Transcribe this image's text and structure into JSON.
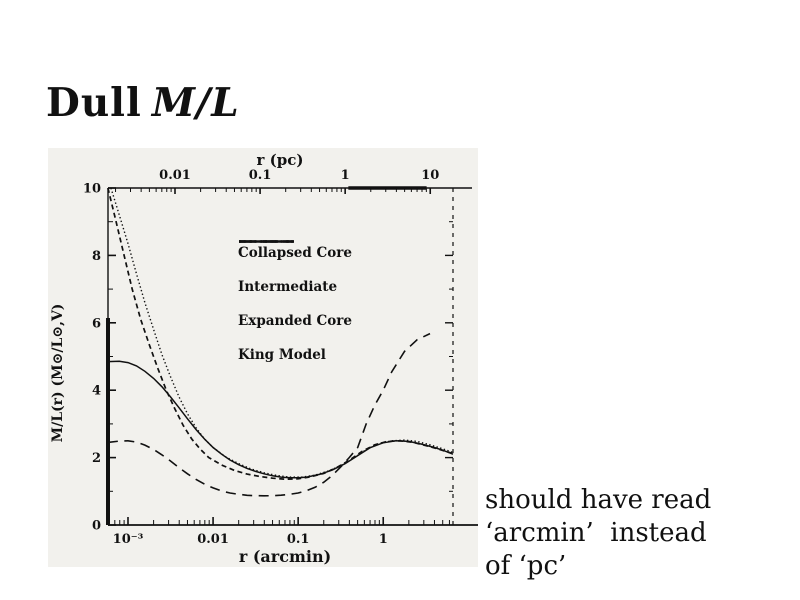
{
  "slide": {
    "title_plain": "Dull",
    "title_math": "M/L",
    "caption_lines": [
      "should have read",
      "‘arcmin’  instead",
      "of ‘pc’"
    ]
  },
  "colors": {
    "ink": "#111111",
    "figure_bg": "#f2f1ed",
    "page_bg": "#ffffff"
  },
  "chart_data": {
    "type": "line",
    "title": "",
    "xlabel_bottom": "r (arcmin)",
    "xlabel_top": "r (pc)",
    "ylabel": "M/L(r) (M⊙/L⊙,V)",
    "x_scale": "log",
    "xlim_log": [
      -3.235,
      0.82
    ],
    "ylim": [
      0,
      10
    ],
    "grid": false,
    "legend_position": "upper middle",
    "pc_offset_log": 0.4475,
    "x_ticks_bottom": [
      {
        "log": -3,
        "label": "10⁻³"
      },
      {
        "log": -2,
        "label": "0.01"
      },
      {
        "log": -1,
        "label": "0.1"
      },
      {
        "log": 0,
        "label": "1"
      }
    ],
    "x_ticks_top": [
      {
        "log_pc": -2,
        "label": "0.01"
      },
      {
        "log_pc": -1,
        "label": "0.1"
      },
      {
        "log_pc": 0,
        "label": "1"
      },
      {
        "log_pc": 1,
        "label": "10"
      }
    ],
    "y_major_ticks": [
      0,
      2,
      4,
      6,
      8,
      10
    ],
    "y_minor_ticks": [
      1,
      3,
      5,
      7,
      9
    ],
    "y_right_major_ticks": [
      2,
      4,
      6,
      8
    ],
    "y_right_minor_ticks": [
      1,
      3,
      5,
      7,
      9
    ],
    "top_clip_segment": {
      "x_log_start": -0.41,
      "x_log_end": 0.51,
      "y": 10
    },
    "series": [
      {
        "name": "Collapsed Core",
        "style": "dashed",
        "dash": "5 3.5",
        "legend_dash": "6 5",
        "width": 1.7,
        "points": [
          [
            0.00058,
            10.0
          ],
          [
            0.00071,
            9.1
          ],
          [
            0.00089,
            8.05
          ],
          [
            0.00112,
            7.0
          ],
          [
            0.00141,
            6.1
          ],
          [
            0.00178,
            5.35
          ],
          [
            0.00224,
            4.65
          ],
          [
            0.00282,
            4.0
          ],
          [
            0.00355,
            3.45
          ],
          [
            0.00447,
            2.95
          ],
          [
            0.00562,
            2.55
          ],
          [
            0.00708,
            2.25
          ],
          [
            0.00891,
            2.0
          ],
          [
            0.0126,
            1.78
          ],
          [
            0.0178,
            1.62
          ],
          [
            0.0251,
            1.51
          ],
          [
            0.0355,
            1.44
          ],
          [
            0.0501,
            1.39
          ],
          [
            0.0708,
            1.36
          ],
          [
            0.1,
            1.37
          ],
          [
            0.141,
            1.43
          ],
          [
            0.2,
            1.53
          ],
          [
            0.282,
            1.7
          ],
          [
            0.398,
            1.92
          ],
          [
            0.562,
            2.18
          ],
          [
            0.794,
            2.38
          ],
          [
            1.12,
            2.48
          ],
          [
            1.58,
            2.5
          ],
          [
            2.24,
            2.45
          ],
          [
            3.16,
            2.36
          ],
          [
            4.47,
            2.25
          ],
          [
            6.61,
            2.12
          ]
        ]
      },
      {
        "name": "Intermediate",
        "style": "solid",
        "dash": "none",
        "legend_dash": "none",
        "width": 1.5,
        "points": [
          [
            0.00058,
            4.85
          ],
          [
            0.00079,
            4.86
          ],
          [
            0.001,
            4.82
          ],
          [
            0.00126,
            4.72
          ],
          [
            0.00158,
            4.56
          ],
          [
            0.002,
            4.35
          ],
          [
            0.00251,
            4.1
          ],
          [
            0.00316,
            3.8
          ],
          [
            0.00398,
            3.48
          ],
          [
            0.00501,
            3.15
          ],
          [
            0.00631,
            2.83
          ],
          [
            0.00794,
            2.55
          ],
          [
            0.01,
            2.3
          ],
          [
            0.0126,
            2.1
          ],
          [
            0.0158,
            1.93
          ],
          [
            0.02,
            1.79
          ],
          [
            0.0251,
            1.68
          ],
          [
            0.0316,
            1.59
          ],
          [
            0.0398,
            1.52
          ],
          [
            0.0501,
            1.46
          ],
          [
            0.0631,
            1.42
          ],
          [
            0.0794,
            1.4
          ],
          [
            0.1,
            1.4
          ],
          [
            0.126,
            1.42
          ],
          [
            0.178,
            1.5
          ],
          [
            0.251,
            1.63
          ],
          [
            0.355,
            1.82
          ],
          [
            0.501,
            2.06
          ],
          [
            0.708,
            2.3
          ],
          [
            1.0,
            2.44
          ],
          [
            1.41,
            2.5
          ],
          [
            2.0,
            2.48
          ],
          [
            2.82,
            2.4
          ],
          [
            3.98,
            2.3
          ],
          [
            5.01,
            2.22
          ],
          [
            6.61,
            2.1
          ]
        ]
      },
      {
        "name": "Expanded Core",
        "style": "dotted",
        "dash": "1.4 2.4",
        "legend_dash": "2 3.2",
        "width": 1.4,
        "points": [
          [
            0.00063,
            10.0
          ],
          [
            0.00079,
            9.2
          ],
          [
            0.001,
            8.35
          ],
          [
            0.00126,
            7.45
          ],
          [
            0.00158,
            6.6
          ],
          [
            0.002,
            5.8
          ],
          [
            0.00251,
            5.05
          ],
          [
            0.00316,
            4.4
          ],
          [
            0.00398,
            3.8
          ],
          [
            0.00501,
            3.3
          ],
          [
            0.00631,
            2.88
          ],
          [
            0.00794,
            2.55
          ],
          [
            0.01,
            2.3
          ],
          [
            0.0141,
            2.02
          ],
          [
            0.02,
            1.82
          ],
          [
            0.0282,
            1.66
          ],
          [
            0.0398,
            1.55
          ],
          [
            0.0562,
            1.47
          ],
          [
            0.0794,
            1.42
          ],
          [
            0.112,
            1.42
          ],
          [
            0.158,
            1.48
          ],
          [
            0.224,
            1.6
          ],
          [
            0.316,
            1.76
          ],
          [
            0.447,
            1.98
          ],
          [
            0.631,
            2.24
          ],
          [
            0.891,
            2.42
          ],
          [
            1.26,
            2.5
          ],
          [
            1.78,
            2.52
          ],
          [
            2.51,
            2.48
          ],
          [
            3.55,
            2.38
          ],
          [
            5.01,
            2.26
          ],
          [
            6.61,
            2.15
          ]
        ]
      },
      {
        "name": "King Model",
        "style": "long-dashed",
        "dash": "10 6.5",
        "legend_dash": "13 11",
        "width": 1.6,
        "points": [
          [
            0.00058,
            2.45
          ],
          [
            0.00079,
            2.49
          ],
          [
            0.001,
            2.5
          ],
          [
            0.00126,
            2.46
          ],
          [
            0.00158,
            2.37
          ],
          [
            0.002,
            2.24
          ],
          [
            0.00251,
            2.08
          ],
          [
            0.00316,
            1.9
          ],
          [
            0.00398,
            1.7
          ],
          [
            0.00501,
            1.52
          ],
          [
            0.00631,
            1.35
          ],
          [
            0.00794,
            1.21
          ],
          [
            0.01,
            1.1
          ],
          [
            0.0126,
            1.01
          ],
          [
            0.0158,
            0.95
          ],
          [
            0.02,
            0.91
          ],
          [
            0.0251,
            0.88
          ],
          [
            0.0316,
            0.87
          ],
          [
            0.0398,
            0.865
          ],
          [
            0.0501,
            0.87
          ],
          [
            0.0631,
            0.885
          ],
          [
            0.0794,
            0.91
          ],
          [
            0.1,
            0.95
          ],
          [
            0.126,
            1.02
          ],
          [
            0.158,
            1.12
          ],
          [
            0.2,
            1.27
          ],
          [
            0.251,
            1.47
          ],
          [
            0.316,
            1.72
          ],
          [
            0.398,
            2.0
          ],
          [
            0.501,
            2.3
          ],
          [
            0.631,
            3.0
          ],
          [
            0.794,
            3.55
          ],
          [
            1.0,
            4.0
          ],
          [
            1.26,
            4.55
          ],
          [
            1.78,
            5.15
          ],
          [
            2.51,
            5.5
          ],
          [
            3.55,
            5.68
          ]
        ]
      }
    ]
  }
}
